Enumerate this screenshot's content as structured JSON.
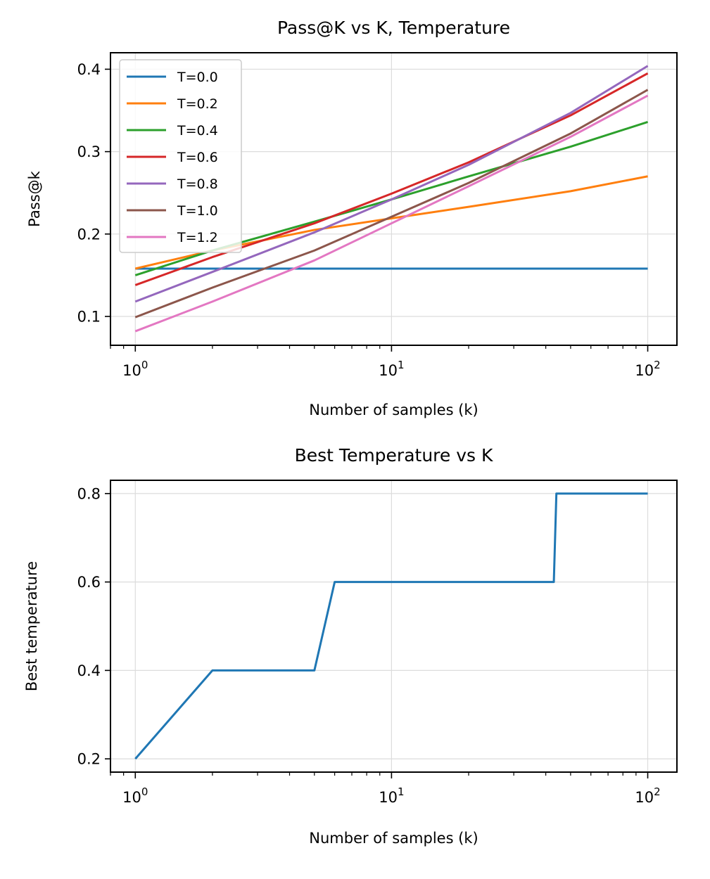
{
  "chart_data": [
    {
      "type": "line",
      "title": "Pass@K vs K, Temperature",
      "xlabel": "Number of samples (k)",
      "ylabel": "Pass@k",
      "xscale": "log",
      "xlim": [
        0.8,
        130
      ],
      "ylim": [
        0.065,
        0.42
      ],
      "xticks": [
        {
          "value": 1,
          "base": "10",
          "exp": "0"
        },
        {
          "value": 10,
          "base": "10",
          "exp": "1"
        },
        {
          "value": 100,
          "base": "10",
          "exp": "2"
        }
      ],
      "yticks": [
        {
          "value": 0.1,
          "label": "0.1"
        },
        {
          "value": 0.2,
          "label": "0.2"
        },
        {
          "value": 0.3,
          "label": "0.3"
        },
        {
          "value": 0.4,
          "label": "0.4"
        }
      ],
      "grid": true,
      "legend": "upper-left",
      "x": [
        1,
        2,
        5,
        10,
        20,
        50,
        100
      ],
      "series": [
        {
          "name": "T=0.0",
          "color": "#1f77b4",
          "values": [
            0.158,
            0.158,
            0.158,
            0.158,
            0.158,
            0.158,
            0.158
          ]
        },
        {
          "name": "T=0.2",
          "color": "#ff7f0e",
          "values": [
            0.158,
            0.18,
            0.205,
            0.219,
            0.233,
            0.252,
            0.27
          ]
        },
        {
          "name": "T=0.4",
          "color": "#2ca02c",
          "values": [
            0.15,
            0.18,
            0.215,
            0.242,
            0.27,
            0.306,
            0.336
          ]
        },
        {
          "name": "T=0.6",
          "color": "#d62728",
          "values": [
            0.138,
            0.172,
            0.213,
            0.249,
            0.287,
            0.344,
            0.395
          ]
        },
        {
          "name": "T=0.8",
          "color": "#9467bd",
          "values": [
            0.118,
            0.154,
            0.202,
            0.242,
            0.284,
            0.347,
            0.404
          ]
        },
        {
          "name": "T=1.0",
          "color": "#8c564b",
          "values": [
            0.099,
            0.135,
            0.18,
            0.221,
            0.262,
            0.322,
            0.375
          ]
        },
        {
          "name": "T=1.2",
          "color": "#e377c2",
          "values": [
            0.082,
            0.118,
            0.168,
            0.213,
            0.258,
            0.318,
            0.368
          ]
        }
      ]
    },
    {
      "type": "line",
      "title": "Best Temperature vs K",
      "xlabel": "Number of samples (k)",
      "ylabel": "Best temperature",
      "xscale": "log",
      "xlim": [
        0.8,
        130
      ],
      "ylim": [
        0.17,
        0.83
      ],
      "xticks": [
        {
          "value": 1,
          "base": "10",
          "exp": "0"
        },
        {
          "value": 10,
          "base": "10",
          "exp": "1"
        },
        {
          "value": 100,
          "base": "10",
          "exp": "2"
        }
      ],
      "yticks": [
        {
          "value": 0.2,
          "label": "0.2"
        },
        {
          "value": 0.4,
          "label": "0.4"
        },
        {
          "value": 0.6,
          "label": "0.6"
        },
        {
          "value": 0.8,
          "label": "0.8"
        }
      ],
      "grid": true,
      "legend": "none",
      "x": [
        1,
        2,
        5,
        6,
        43,
        44,
        100
      ],
      "series": [
        {
          "name": "best temperature",
          "color": "#1f77b4",
          "values": [
            0.2,
            0.4,
            0.4,
            0.6,
            0.6,
            0.8,
            0.8
          ]
        }
      ]
    }
  ]
}
